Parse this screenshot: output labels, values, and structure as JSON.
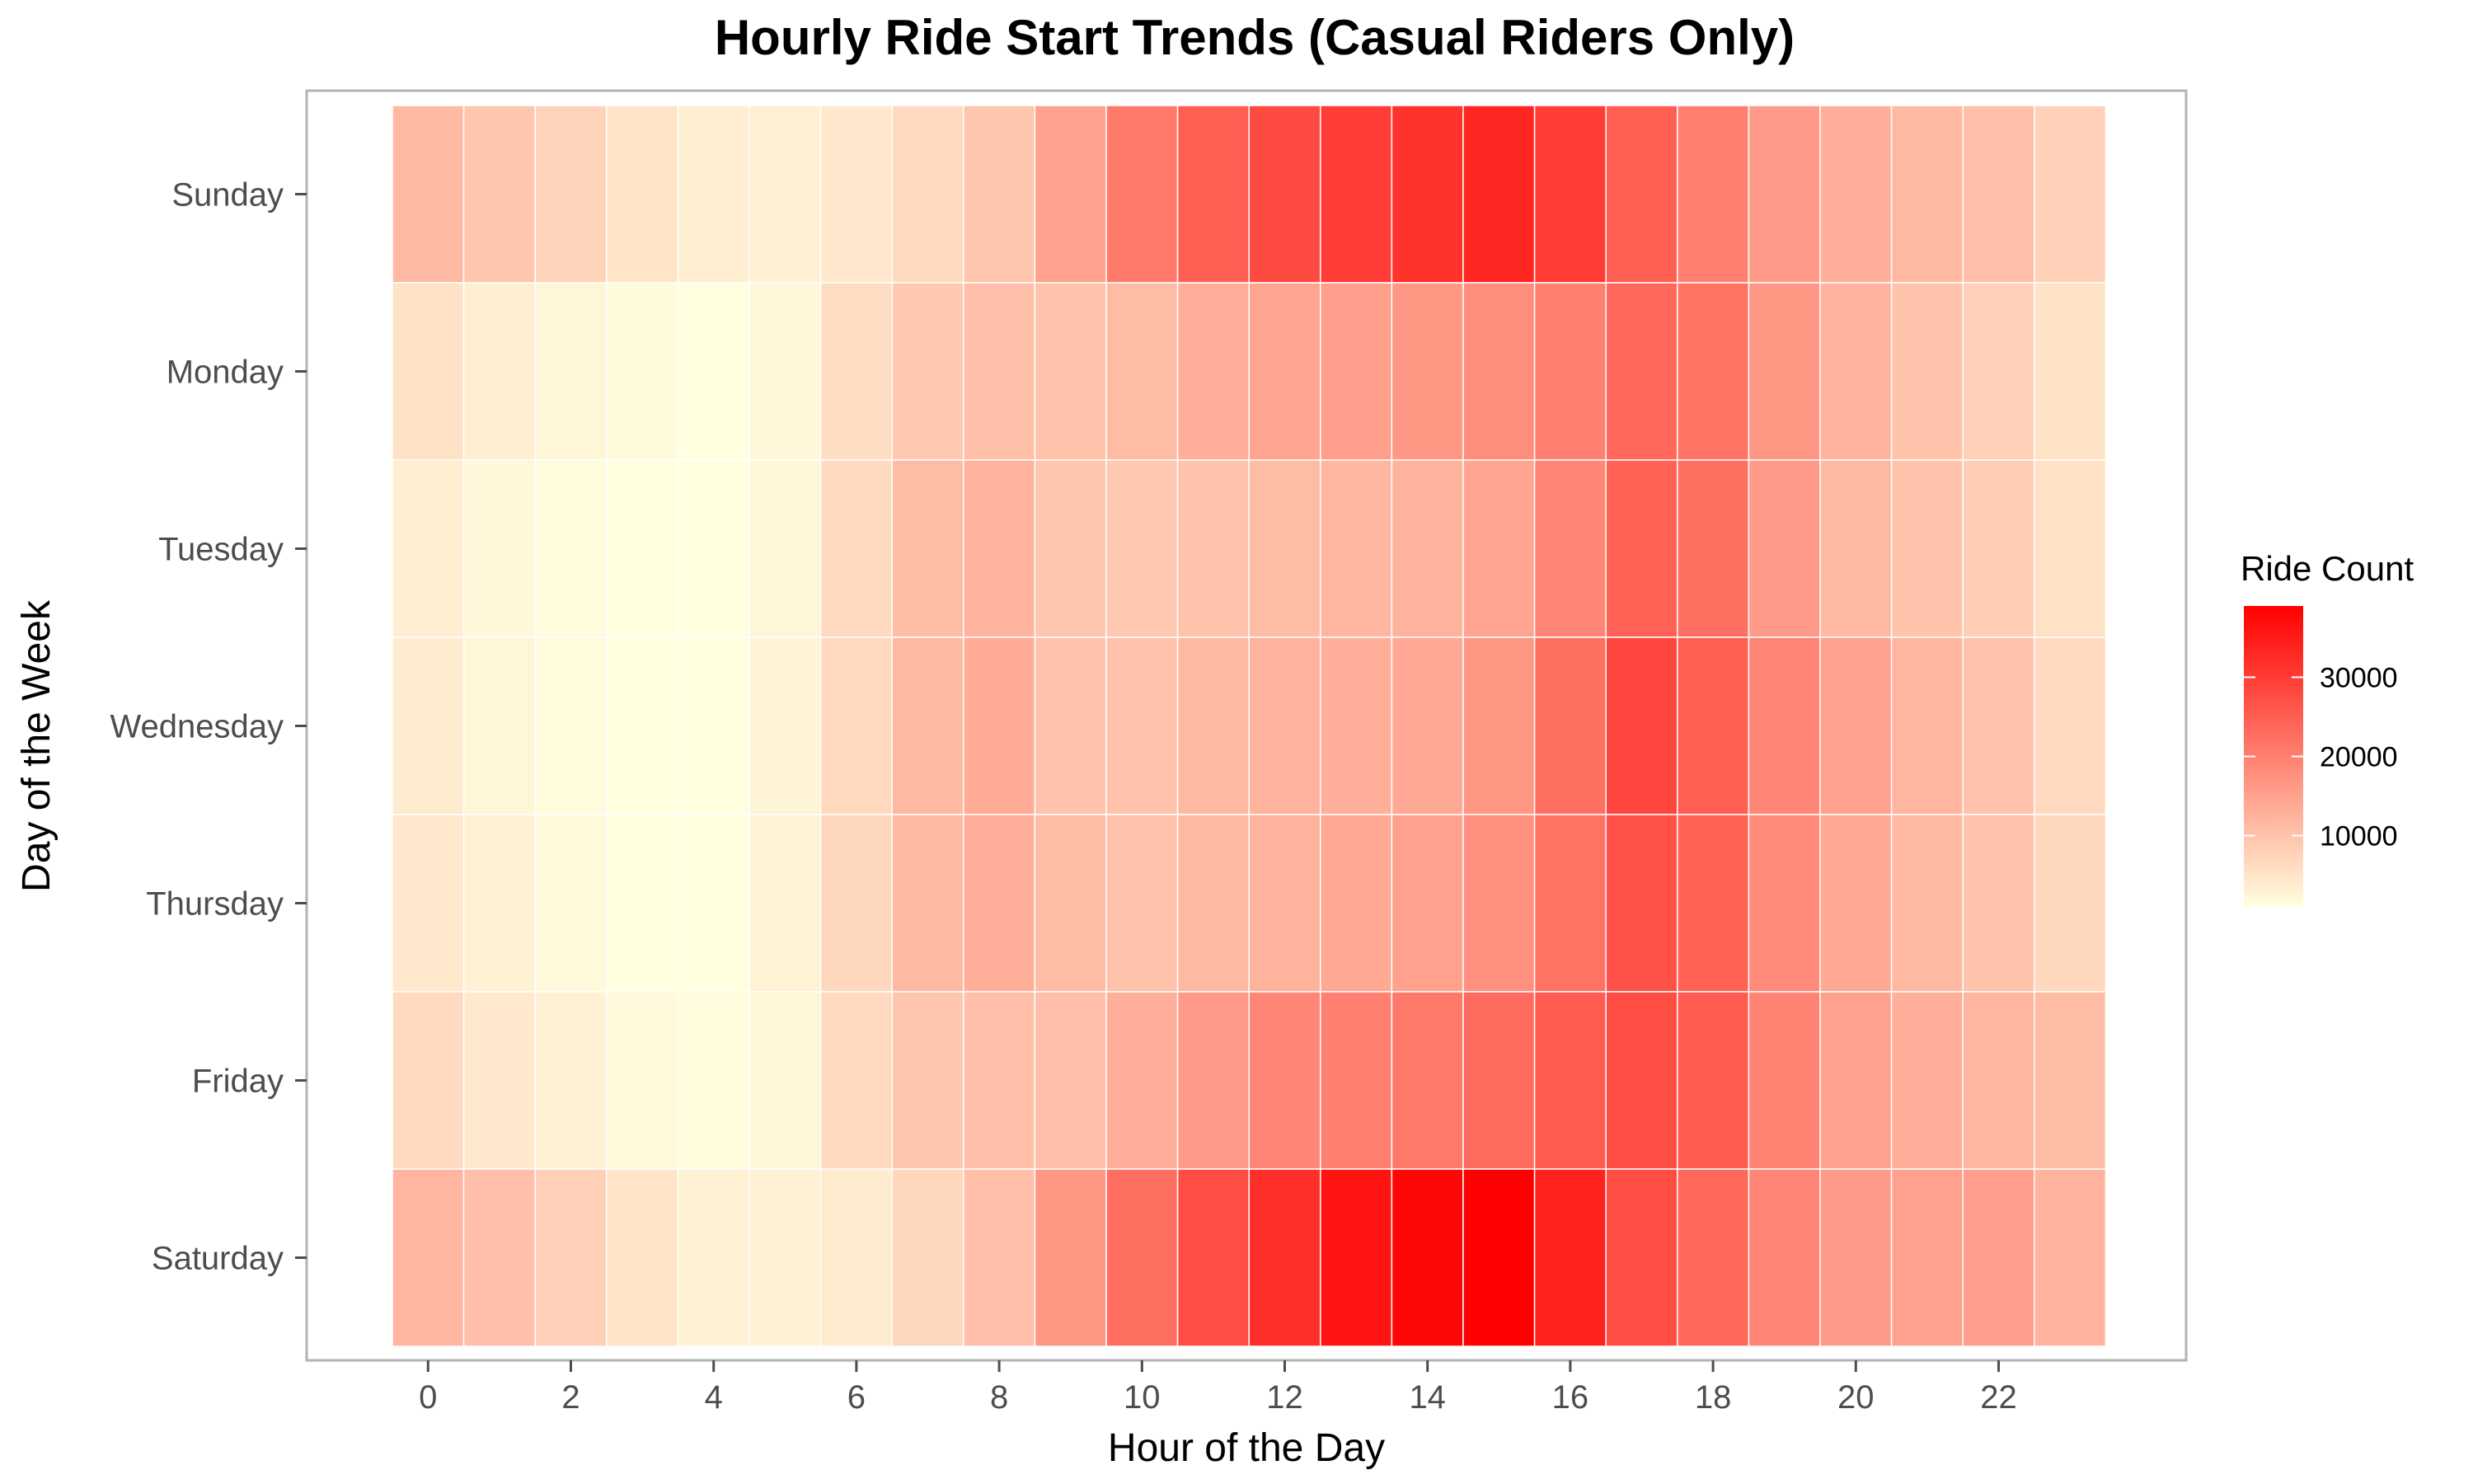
{
  "chart_data": {
    "type": "heatmap",
    "title": "Hourly Ride Start Trends (Casual Riders Only)",
    "xlabel": "Hour of the Day",
    "ylabel": "Day of the Week",
    "x": [
      0,
      1,
      2,
      3,
      4,
      5,
      6,
      7,
      8,
      9,
      10,
      11,
      12,
      13,
      14,
      15,
      16,
      17,
      18,
      19,
      20,
      21,
      22,
      23
    ],
    "x_ticks": [
      "0",
      "2",
      "4",
      "6",
      "8",
      "10",
      "12",
      "14",
      "16",
      "18",
      "20",
      "22"
    ],
    "y": [
      "Sunday",
      "Monday",
      "Tuesday",
      "Wednesday",
      "Thursday",
      "Friday",
      "Saturday"
    ],
    "values": [
      [
        11500,
        9500,
        7500,
        5000,
        3500,
        3200,
        4500,
        6500,
        9500,
        15000,
        21000,
        25000,
        28000,
        30000,
        31500,
        33500,
        30000,
        25000,
        20000,
        16000,
        13000,
        11500,
        10500,
        7800
      ],
      [
        5500,
        3500,
        2500,
        1700,
        1200,
        2200,
        6000,
        9000,
        10500,
        10000,
        11000,
        13000,
        14500,
        15500,
        16500,
        18000,
        20000,
        23500,
        22000,
        16500,
        12500,
        10000,
        8000,
        5200
      ],
      [
        3500,
        2200,
        1500,
        1000,
        1000,
        2500,
        6500,
        11000,
        12500,
        9500,
        9000,
        10000,
        11000,
        12000,
        12500,
        14500,
        19000,
        24500,
        22500,
        16000,
        11500,
        10000,
        8500,
        5500
      ],
      [
        3800,
        2300,
        1600,
        1000,
        1100,
        2600,
        6800,
        11500,
        13500,
        10000,
        10000,
        11500,
        12500,
        13000,
        14000,
        16500,
        22500,
        28500,
        25000,
        19000,
        15000,
        12000,
        10000,
        6500
      ],
      [
        4500,
        3000,
        2000,
        1100,
        1200,
        2800,
        7000,
        11500,
        13000,
        11000,
        10000,
        11500,
        12500,
        14000,
        15000,
        17500,
        22000,
        27000,
        24500,
        18500,
        14000,
        11500,
        10000,
        7000
      ],
      [
        6500,
        4500,
        3000,
        2000,
        1500,
        2500,
        6500,
        9500,
        10500,
        10500,
        13000,
        16000,
        19000,
        20000,
        21000,
        23000,
        25500,
        27500,
        25500,
        19500,
        15000,
        13000,
        12000,
        11000
      ],
      [
        12000,
        10500,
        8000,
        5000,
        3000,
        3000,
        4000,
        7000,
        10500,
        16500,
        22500,
        27500,
        32000,
        36000,
        38000,
        39000,
        34000,
        27500,
        23500,
        19000,
        16000,
        15000,
        15500,
        12500
      ]
    ],
    "legend": {
      "title": "Ride Count",
      "breaks": [
        10000,
        20000,
        30000
      ],
      "break_labels": [
        "10000",
        "20000",
        "30000"
      ],
      "range": [
        1000,
        39000
      ],
      "low_color": "#FFFFE0",
      "high_color": "#FF0000",
      "placement": "right"
    },
    "colors": {
      "panel_border": "#b3b3b3",
      "tick_color": "#4d4d4d",
      "tile_border": "#ffffff"
    }
  }
}
